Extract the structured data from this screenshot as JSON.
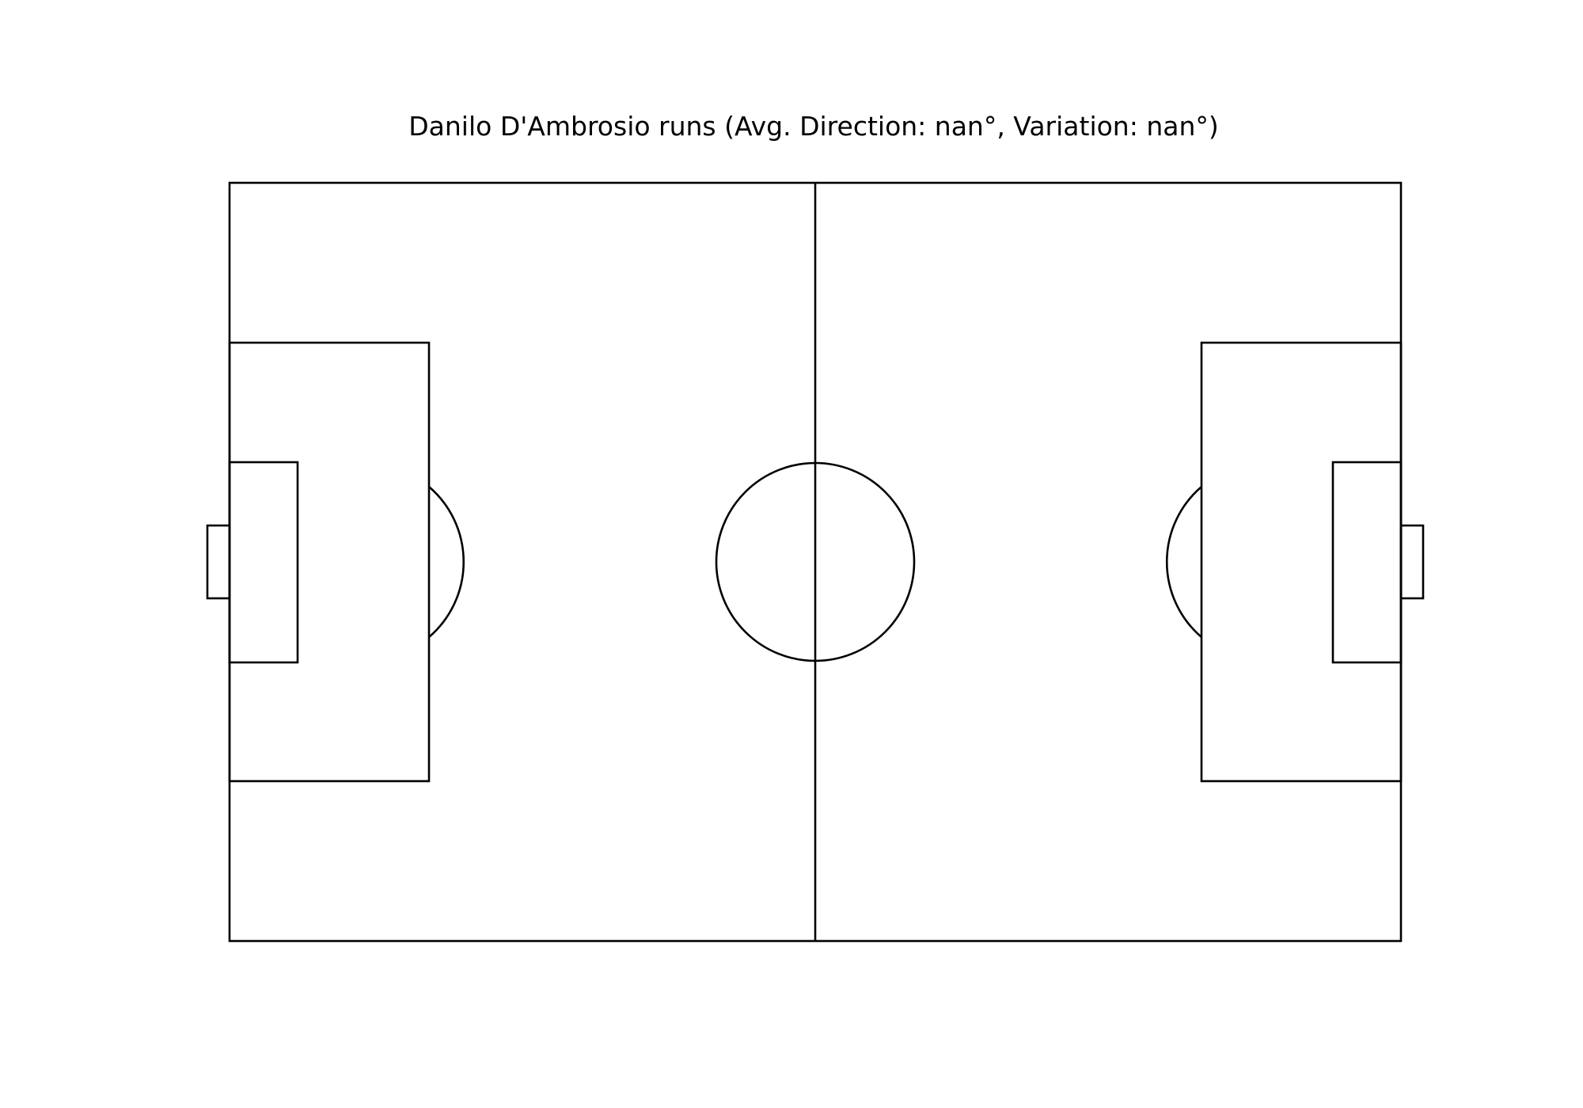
{
  "figure": {
    "title": "Danilo D'Ambrosio runs (Avg. Direction: nan°, Variation: nan°)"
  },
  "pitch": {
    "line_color": "#000000",
    "background_color": "#ffffff",
    "runs": []
  }
}
